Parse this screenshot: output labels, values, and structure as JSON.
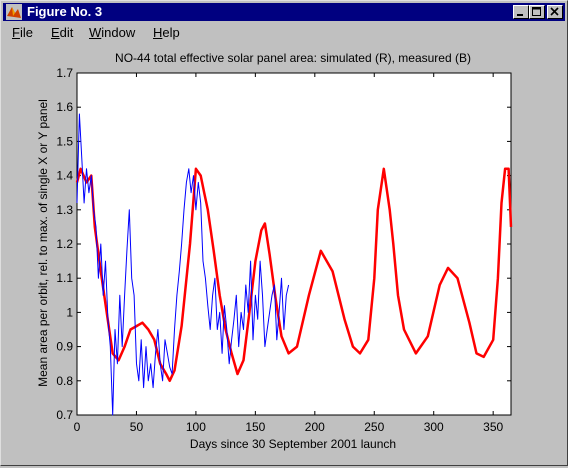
{
  "window": {
    "title": "Figure No. 3",
    "controls": {
      "minimize": "_",
      "maximize": "□",
      "close": "×"
    }
  },
  "menu": [
    {
      "label": "File",
      "mnemonic": "F",
      "rest": "ile"
    },
    {
      "label": "Edit",
      "mnemonic": "E",
      "rest": "dit"
    },
    {
      "label": "Window",
      "mnemonic": "W",
      "rest": "indow"
    },
    {
      "label": "Help",
      "mnemonic": "H",
      "rest": "elp"
    }
  ],
  "chart_data": {
    "type": "line",
    "title": "NO-44 total effective solar panel area: simulated (R), measured (B)",
    "xlabel": "Days since 30 September 2001 launch",
    "ylabel": "Mean area per orbit, rel. to max. of single X or Y panel",
    "xlim": [
      0,
      365
    ],
    "ylim": [
      0.7,
      1.7
    ],
    "xticks": [
      0,
      50,
      100,
      150,
      200,
      250,
      300,
      350
    ],
    "yticks": [
      "0.7",
      "0.8",
      "0.9",
      "1",
      "1.1",
      "1.2",
      "1.3",
      "1.4",
      "1.5",
      "1.6",
      "1.7"
    ],
    "grid": false,
    "series": [
      {
        "name": "simulated (R)",
        "color": "#ff0000",
        "x": [
          0,
          3,
          8,
          12,
          15,
          20,
          25,
          30,
          35,
          40,
          45,
          50,
          55,
          60,
          65,
          70,
          75,
          78,
          82,
          88,
          95,
          100,
          104,
          107,
          110,
          115,
          120,
          125,
          130,
          135,
          140,
          145,
          150,
          155,
          158,
          162,
          167,
          172,
          178,
          185,
          195,
          205,
          215,
          225,
          232,
          238,
          245,
          250,
          253,
          258,
          263,
          266,
          270,
          275,
          285,
          295,
          305,
          312,
          320,
          330,
          336,
          342,
          350,
          354,
          357,
          360,
          363,
          365
        ],
        "y": [
          1.38,
          1.42,
          1.38,
          1.4,
          1.25,
          1.12,
          1.0,
          0.88,
          0.86,
          0.9,
          0.95,
          0.96,
          0.97,
          0.95,
          0.92,
          0.85,
          0.82,
          0.8,
          0.83,
          0.96,
          1.2,
          1.42,
          1.4,
          1.35,
          1.3,
          1.18,
          1.05,
          0.95,
          0.88,
          0.82,
          0.86,
          1.0,
          1.15,
          1.24,
          1.26,
          1.17,
          1.04,
          0.93,
          0.88,
          0.9,
          1.05,
          1.18,
          1.12,
          0.98,
          0.9,
          0.88,
          0.92,
          1.1,
          1.3,
          1.42,
          1.3,
          1.2,
          1.05,
          0.95,
          0.88,
          0.93,
          1.08,
          1.13,
          1.1,
          0.97,
          0.88,
          0.87,
          0.92,
          1.1,
          1.32,
          1.42,
          1.42,
          1.25
        ]
      },
      {
        "name": "measured (B)",
        "color": "#0000ff",
        "x": [
          0,
          2,
          4,
          6,
          8,
          10,
          12,
          14,
          16,
          18,
          20,
          22,
          24,
          26,
          28,
          30,
          32,
          34,
          36,
          38,
          40,
          42,
          44,
          46,
          48,
          50,
          52,
          54,
          56,
          58,
          60,
          62,
          64,
          66,
          68,
          70,
          72,
          74,
          76,
          78,
          80,
          82,
          84,
          86,
          88,
          90,
          92,
          94,
          96,
          98,
          100,
          102,
          104,
          106,
          108,
          110,
          112,
          114,
          116,
          118,
          120,
          122,
          124,
          126,
          128,
          130,
          132,
          134,
          136,
          138,
          140,
          142,
          144,
          146,
          148,
          150,
          152,
          154,
          156,
          158,
          160,
          162,
          164,
          166,
          168,
          170,
          172,
          174,
          176,
          178
        ],
        "y": [
          1.32,
          1.58,
          1.45,
          1.32,
          1.42,
          1.35,
          1.4,
          1.3,
          1.25,
          1.1,
          1.2,
          1.05,
          1.15,
          0.98,
          0.9,
          0.7,
          0.95,
          0.85,
          1.05,
          0.9,
          1.05,
          1.18,
          1.3,
          1.1,
          1.05,
          0.85,
          0.8,
          0.92,
          0.78,
          0.9,
          0.8,
          0.85,
          0.78,
          0.88,
          0.95,
          0.85,
          0.8,
          0.92,
          0.88,
          0.84,
          0.82,
          0.95,
          1.05,
          1.12,
          1.2,
          1.3,
          1.38,
          1.42,
          1.35,
          1.4,
          1.3,
          1.38,
          1.32,
          1.15,
          1.1,
          1.02,
          0.95,
          1.05,
          1.1,
          0.95,
          1.0,
          0.88,
          1.02,
          0.95,
          0.85,
          0.92,
          0.98,
          1.05,
          0.9,
          1.0,
          0.95,
          1.08,
          1.0,
          1.15,
          0.92,
          1.05,
          0.98,
          1.15,
          1.05,
          0.9,
          0.95,
          1.0,
          1.05,
          1.08,
          0.92,
          1.0,
          1.1,
          0.95,
          1.05,
          1.08
        ]
      }
    ]
  }
}
